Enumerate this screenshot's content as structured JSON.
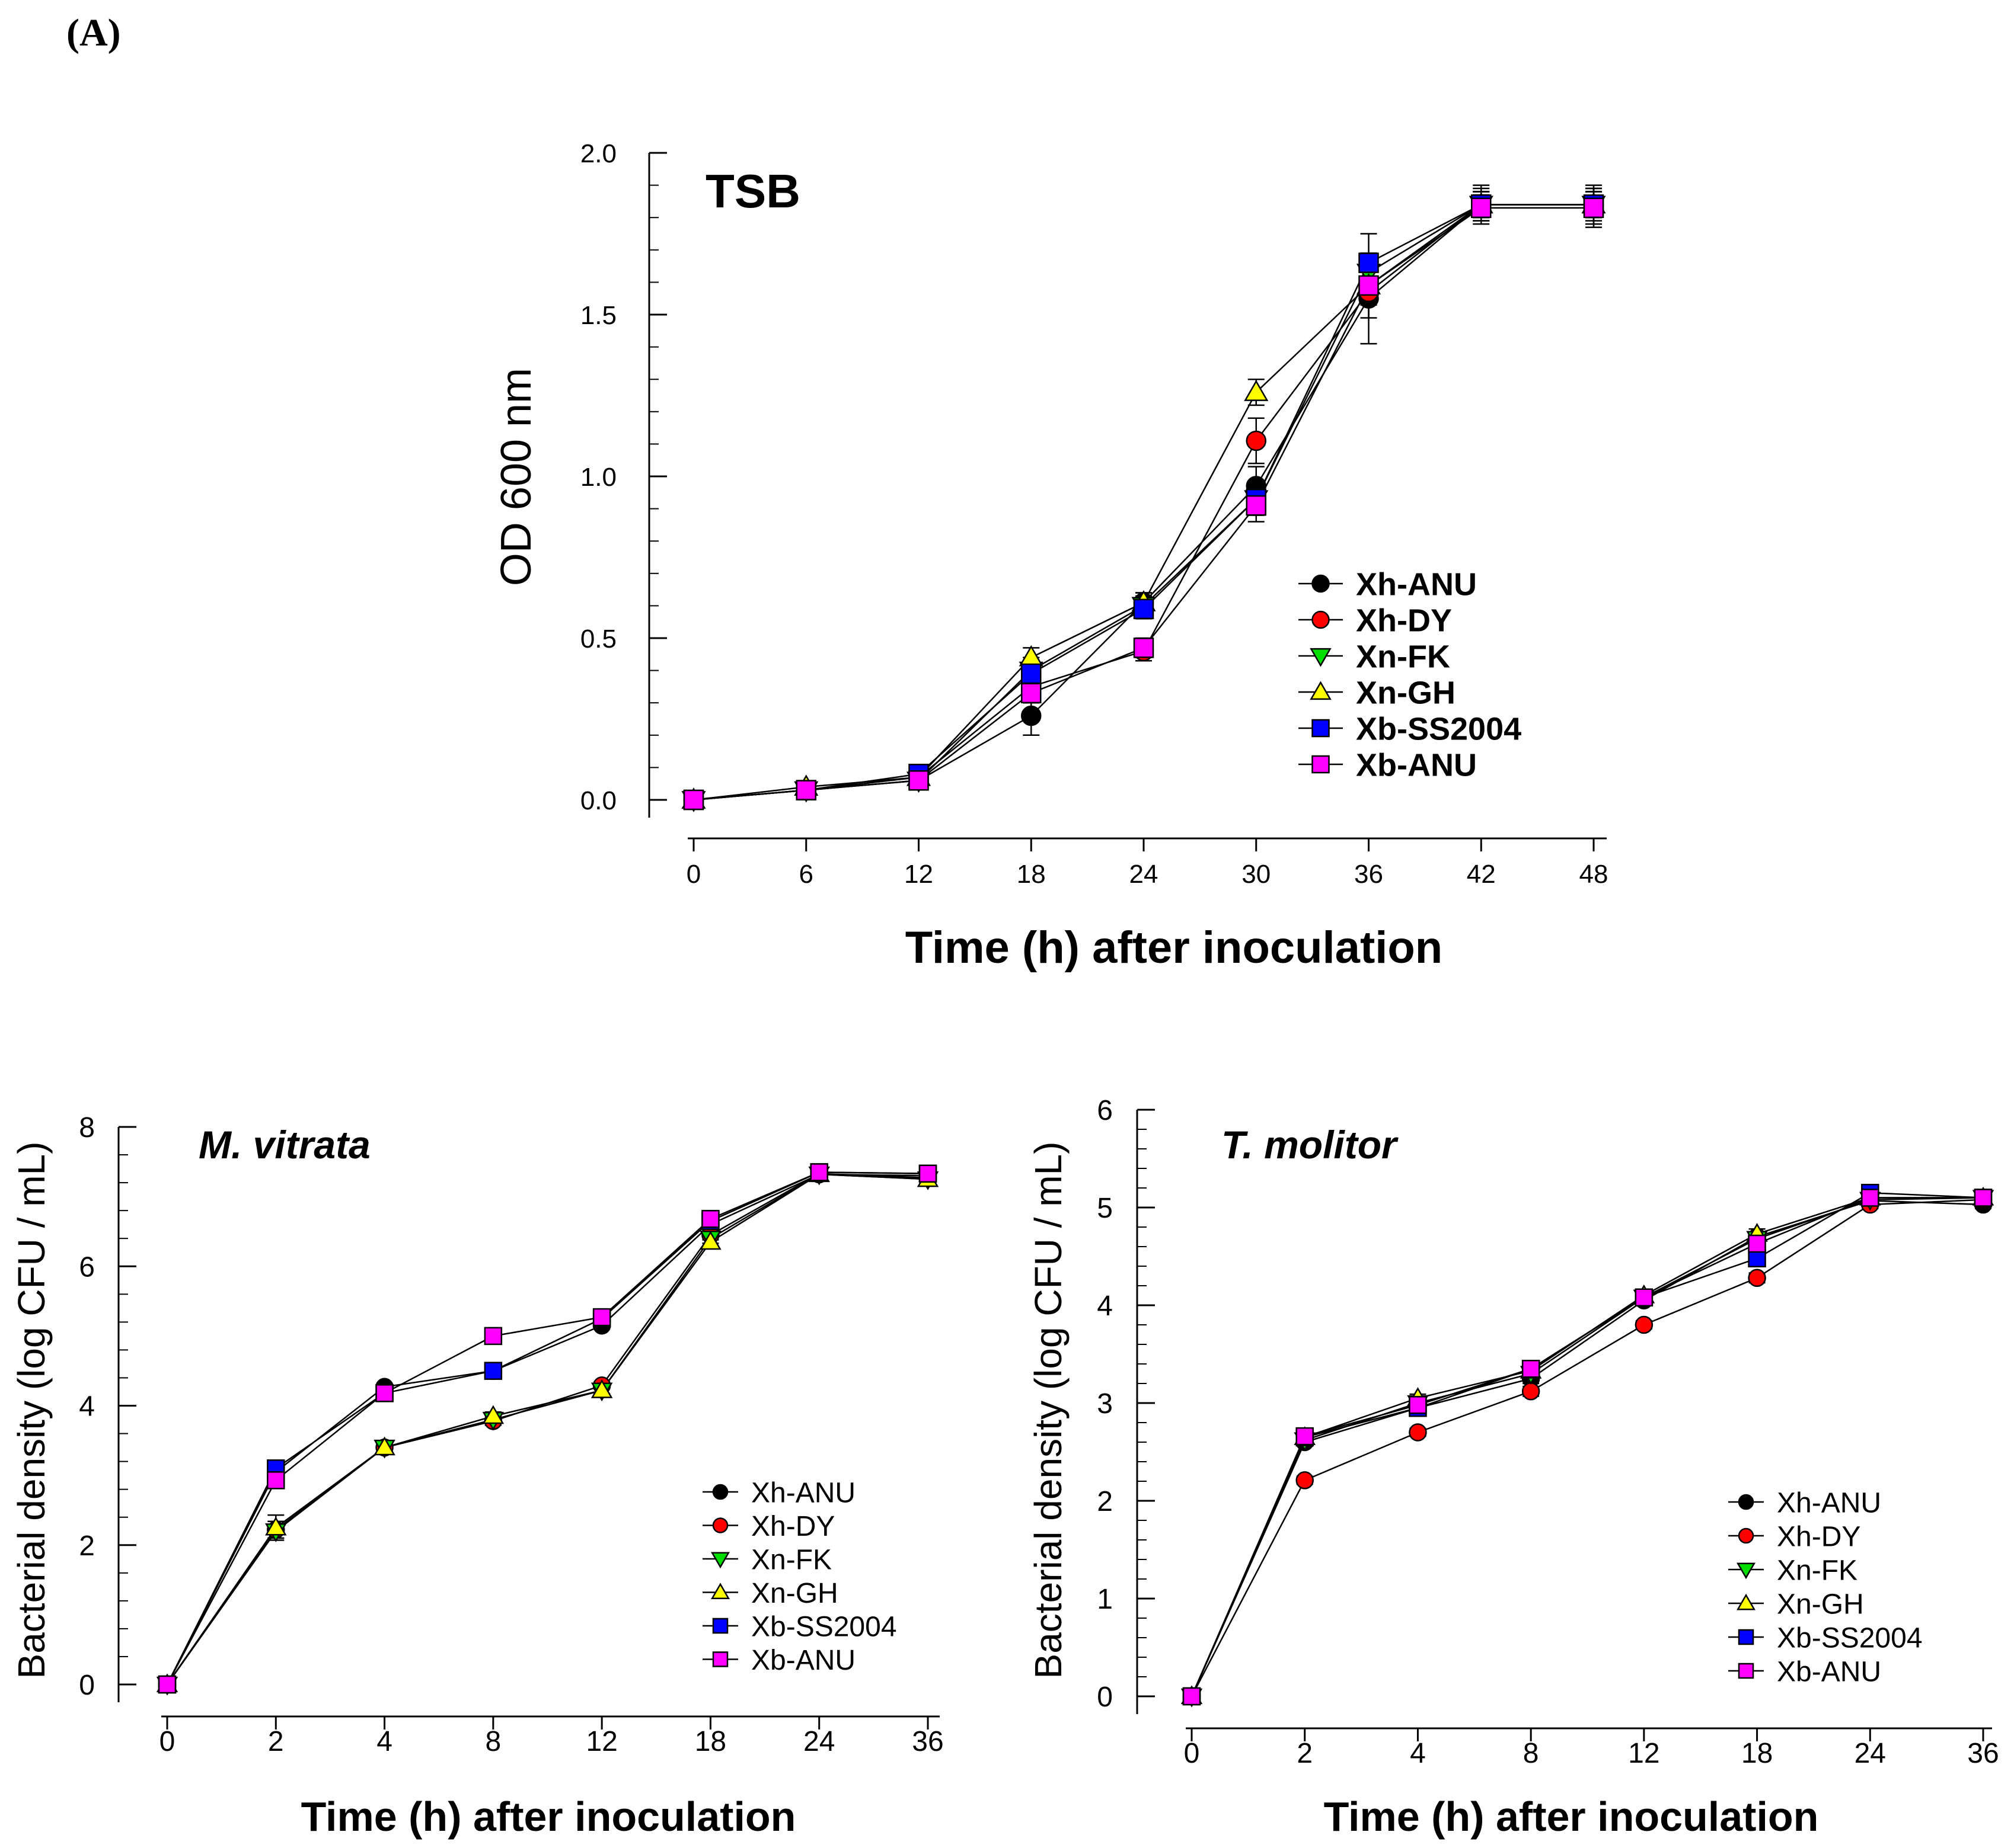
{
  "panel_label": "(A)",
  "colors": {
    "Xh-ANU": "#000000",
    "Xh-DY": "#ff0000",
    "Xn-FK": "#00dd00",
    "Xn-GH": "#ffff00",
    "Xb-SS2004": "#0000ff",
    "Xb-ANU": "#ff00ff"
  },
  "chart_data": [
    {
      "type": "line",
      "title": "TSB",
      "xlabel": "Time (h) after inoculation",
      "ylabel": "OD 600 nm",
      "x": [
        0,
        6,
        12,
        18,
        24,
        30,
        36,
        42,
        48
      ],
      "x_tick_labels": [
        "0",
        "6",
        "12",
        "18",
        "24",
        "30",
        "36",
        "42",
        "48"
      ],
      "ylim": [
        0,
        2.0
      ],
      "y_ticks": [
        0.0,
        0.5,
        1.0,
        1.5,
        2.0
      ],
      "y_tick_labels": [
        "0.0",
        "0.5",
        "1.0",
        "1.5",
        "2.0"
      ],
      "legend_position": "right",
      "series": [
        {
          "name": "Xh-ANU",
          "marker": "circle",
          "values": [
            0.0,
            0.03,
            0.06,
            0.26,
            0.61,
            0.97,
            1.55,
            1.84,
            1.84
          ],
          "errors": [
            0.01,
            0.01,
            0.02,
            0.06,
            0.03,
            0.06,
            0.14,
            0.05,
            0.06
          ]
        },
        {
          "name": "Xh-DY",
          "marker": "circle",
          "values": [
            0.0,
            0.03,
            0.07,
            0.35,
            0.46,
            1.11,
            1.57,
            1.84,
            1.84
          ],
          "errors": [
            0.01,
            0.01,
            0.02,
            0.04,
            0.03,
            0.07,
            0.08,
            0.04,
            0.04
          ]
        },
        {
          "name": "Xn-FK",
          "marker": "triangle-down",
          "values": [
            0.0,
            0.03,
            0.06,
            0.4,
            0.6,
            0.93,
            1.63,
            1.84,
            1.84
          ],
          "errors": [
            0.01,
            0.01,
            0.02,
            0.04,
            0.03,
            0.05,
            0.06,
            0.04,
            0.04
          ]
        },
        {
          "name": "Xn-GH",
          "marker": "triangle-up",
          "values": [
            0.0,
            0.04,
            0.07,
            0.44,
            0.61,
            1.26,
            1.59,
            1.84,
            1.84
          ],
          "errors": [
            0.01,
            0.01,
            0.02,
            0.03,
            0.03,
            0.04,
            0.06,
            0.04,
            0.04
          ]
        },
        {
          "name": "Xb-SS2004",
          "marker": "square",
          "values": [
            0.0,
            0.03,
            0.08,
            0.39,
            0.59,
            0.93,
            1.66,
            1.84,
            1.84
          ],
          "errors": [
            0.01,
            0.01,
            0.02,
            0.04,
            0.03,
            0.05,
            0.09,
            0.06,
            0.05
          ]
        },
        {
          "name": "Xb-ANU",
          "marker": "square",
          "values": [
            0.0,
            0.03,
            0.06,
            0.33,
            0.47,
            0.91,
            1.59,
            1.83,
            1.83
          ],
          "errors": [
            0.01,
            0.01,
            0.02,
            0.03,
            0.03,
            0.05,
            0.06,
            0.04,
            0.06
          ]
        }
      ]
    },
    {
      "type": "line",
      "title": "M. vitrata",
      "xlabel": "Time (h) after inoculation",
      "ylabel": "Bacterial density (log CFU / mL)",
      "x": [
        0,
        2,
        4,
        8,
        12,
        18,
        24,
        36
      ],
      "x_tick_labels": [
        "0",
        "2",
        "4",
        "8",
        "12",
        "18",
        "24",
        "36"
      ],
      "ylim": [
        0,
        8
      ],
      "y_ticks": [
        0,
        2,
        4,
        6,
        8
      ],
      "y_tick_labels": [
        "0",
        "2",
        "4",
        "6",
        "8"
      ],
      "legend_position": "bottom-right",
      "series": [
        {
          "name": "Xh-ANU",
          "marker": "circle",
          "values": [
            0,
            3.05,
            4.27,
            4.5,
            5.15,
            6.6,
            7.32,
            7.3
          ],
          "errors": [
            0,
            0.08,
            0.05,
            0.05,
            0.05,
            0.06,
            0.05,
            0.05
          ]
        },
        {
          "name": "Xh-DY",
          "marker": "circle",
          "values": [
            0,
            2.22,
            3.4,
            3.78,
            4.29,
            6.45,
            7.33,
            7.27
          ],
          "errors": [
            0,
            0.12,
            0.06,
            0.06,
            0.05,
            0.07,
            0.05,
            0.05
          ]
        },
        {
          "name": "Xn-FK",
          "marker": "triangle-down",
          "values": [
            0,
            2.2,
            3.4,
            3.8,
            4.22,
            6.4,
            7.32,
            7.25
          ],
          "errors": [
            0,
            0.1,
            0.06,
            0.06,
            0.05,
            0.07,
            0.05,
            0.05
          ]
        },
        {
          "name": "Xn-GH",
          "marker": "triangle-up",
          "values": [
            0,
            2.25,
            3.4,
            3.85,
            4.22,
            6.35,
            7.32,
            7.25
          ],
          "errors": [
            0,
            0.18,
            0.06,
            0.06,
            0.05,
            0.07,
            0.05,
            0.05
          ]
        },
        {
          "name": "Xb-SS2004",
          "marker": "square",
          "values": [
            0,
            3.1,
            4.18,
            4.5,
            5.25,
            6.65,
            7.35,
            7.33
          ],
          "errors": [
            0,
            0.08,
            0.05,
            0.05,
            0.05,
            0.06,
            0.05,
            0.05
          ]
        },
        {
          "name": "Xb-ANU",
          "marker": "square",
          "values": [
            0,
            2.93,
            4.18,
            5.0,
            5.27,
            6.68,
            7.35,
            7.33
          ],
          "errors": [
            0,
            0.08,
            0.05,
            0.05,
            0.05,
            0.06,
            0.05,
            0.05
          ]
        }
      ]
    },
    {
      "type": "line",
      "title": "T. molitor",
      "xlabel": "Time (h) after inoculation",
      "ylabel": "Bacterial density (log CFU / mL)",
      "x": [
        0,
        2,
        4,
        8,
        12,
        18,
        24,
        36
      ],
      "x_tick_labels": [
        "0",
        "2",
        "4",
        "8",
        "12",
        "18",
        "24",
        "36"
      ],
      "ylim": [
        0,
        6
      ],
      "y_ticks": [
        0,
        1,
        2,
        3,
        4,
        5,
        6
      ],
      "y_tick_labels": [
        "0",
        "1",
        "2",
        "3",
        "4",
        "5",
        "6"
      ],
      "legend_position": "bottom-right",
      "series": [
        {
          "name": "Xh-ANU",
          "marker": "circle",
          "values": [
            0,
            2.6,
            2.95,
            3.25,
            4.05,
            4.7,
            5.07,
            5.03
          ],
          "errors": [
            0,
            0.04,
            0.04,
            0.05,
            0.04,
            0.05,
            0.04,
            0.04
          ]
        },
        {
          "name": "Xh-DY",
          "marker": "circle",
          "values": [
            0,
            2.21,
            2.7,
            3.12,
            3.8,
            4.28,
            5.03,
            5.08
          ],
          "errors": [
            0,
            0.04,
            0.04,
            0.05,
            0.04,
            0.05,
            0.04,
            0.04
          ]
        },
        {
          "name": "Xn-FK",
          "marker": "triangle-down",
          "values": [
            0,
            2.62,
            3.0,
            3.3,
            4.08,
            4.68,
            5.08,
            5.1
          ],
          "errors": [
            0,
            0.04,
            0.04,
            0.05,
            0.04,
            0.05,
            0.04,
            0.04
          ]
        },
        {
          "name": "Xn-GH",
          "marker": "triangle-up",
          "values": [
            0,
            2.65,
            3.05,
            3.33,
            4.1,
            4.73,
            5.1,
            5.1
          ],
          "errors": [
            0,
            0.04,
            0.04,
            0.05,
            0.04,
            0.05,
            0.04,
            0.04
          ]
        },
        {
          "name": "Xb-SS2004",
          "marker": "square",
          "values": [
            0,
            2.65,
            2.95,
            3.35,
            4.08,
            4.48,
            5.15,
            5.1
          ],
          "errors": [
            0,
            0.04,
            0.04,
            0.05,
            0.04,
            0.05,
            0.04,
            0.04
          ]
        },
        {
          "name": "Xb-ANU",
          "marker": "square",
          "values": [
            0,
            2.66,
            2.98,
            3.35,
            4.08,
            4.63,
            5.1,
            5.1
          ],
          "errors": [
            0,
            0.04,
            0.04,
            0.05,
            0.04,
            0.05,
            0.04,
            0.04
          ]
        }
      ]
    }
  ]
}
